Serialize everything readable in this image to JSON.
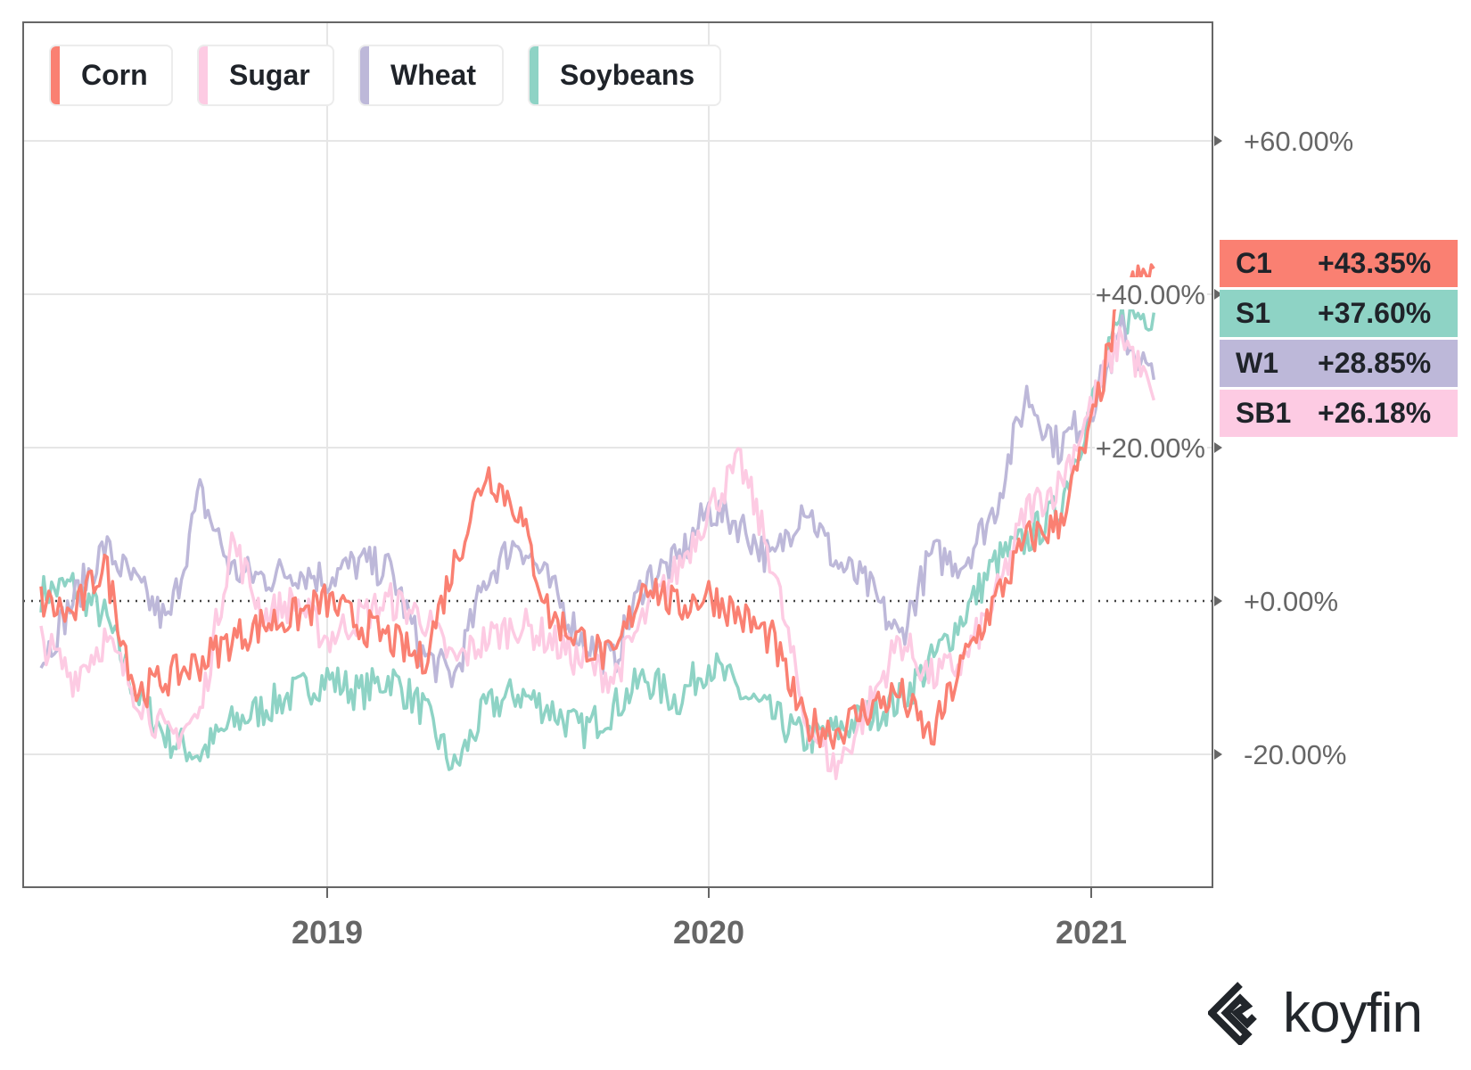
{
  "chart_data": {
    "type": "line",
    "title": "",
    "xlabel": "",
    "ylabel": "",
    "x_start": "2018-04",
    "x_end": "2021-03",
    "x_ticks": [
      "2019",
      "2020",
      "2021"
    ],
    "y_ticks": [
      "+60.00%",
      "+40.00%",
      "+20.00%",
      "+0.00%",
      "-20.00%"
    ],
    "y_tick_values": [
      60,
      40,
      20,
      0,
      -20
    ],
    "ylim": [
      -37,
      75
    ],
    "grid": true,
    "legend_placement": "top-left",
    "series": [
      {
        "name": "Corn",
        "ticker": "C1",
        "last": "+43.35%",
        "color": "#fa8072",
        "values": [
          0,
          -2,
          5,
          -12,
          -10,
          -8,
          -5,
          -3,
          -2,
          0,
          -3,
          -5,
          -8,
          5,
          17,
          12,
          -2,
          -5,
          -8,
          3,
          -1,
          1,
          -2,
          -5,
          -16,
          -17,
          -14,
          -12,
          -18,
          -8,
          0,
          8,
          10,
          22,
          40,
          43.35
        ]
      },
      {
        "name": "Sugar",
        "ticker": "SB1",
        "last": "+26.18%",
        "color": "#fdcbe3",
        "values": [
          -5,
          -10,
          -5,
          -12,
          -18,
          -15,
          8,
          -2,
          0,
          -5,
          -2,
          0,
          -2,
          -8,
          -5,
          -3,
          -5,
          -8,
          -10,
          -2,
          4,
          12,
          18,
          5,
          -15,
          -22,
          -14,
          -5,
          -10,
          -8,
          0,
          12,
          15,
          25,
          35,
          26.18
        ]
      },
      {
        "name": "Wheat",
        "ticker": "W1",
        "last": "+28.85%",
        "color": "#bdb8d9",
        "values": [
          -8,
          0,
          7,
          2,
          -3,
          14,
          4,
          3,
          4,
          3,
          5,
          4,
          -7,
          -10,
          3,
          8,
          2,
          -5,
          -8,
          3,
          5,
          12,
          10,
          5,
          13,
          5,
          2,
          -5,
          6,
          5,
          12,
          27,
          20,
          25,
          35,
          28.85
        ]
      },
      {
        "name": "Soybeans",
        "ticker": "S1",
        "last": "+37.60%",
        "color": "#8ed3c5",
        "values": [
          1,
          2,
          -2,
          -12,
          -18,
          -20,
          -16,
          -14,
          -12,
          -10,
          -12,
          -10,
          -14,
          -22,
          -14,
          -12,
          -14,
          -17,
          -14,
          -10,
          -13,
          -8,
          -12,
          -15,
          -18,
          -17,
          -15,
          -13,
          -8,
          -2,
          5,
          8,
          12,
          25,
          37,
          37.6
        ]
      }
    ]
  },
  "legend": [
    "Corn",
    "Sugar",
    "Wheat",
    "Soybeans"
  ],
  "tags": [
    {
      "ticker": "C1",
      "value": "+43.35%",
      "color": "#fa8072"
    },
    {
      "ticker": "S1",
      "value": "+37.60%",
      "color": "#8ed3c5"
    },
    {
      "ticker": "W1",
      "value": "+28.85%",
      "color": "#bdb8d9"
    },
    {
      "ticker": "SB1",
      "value": "+26.18%",
      "color": "#fdcbe3"
    }
  ],
  "logo": "koyfin"
}
